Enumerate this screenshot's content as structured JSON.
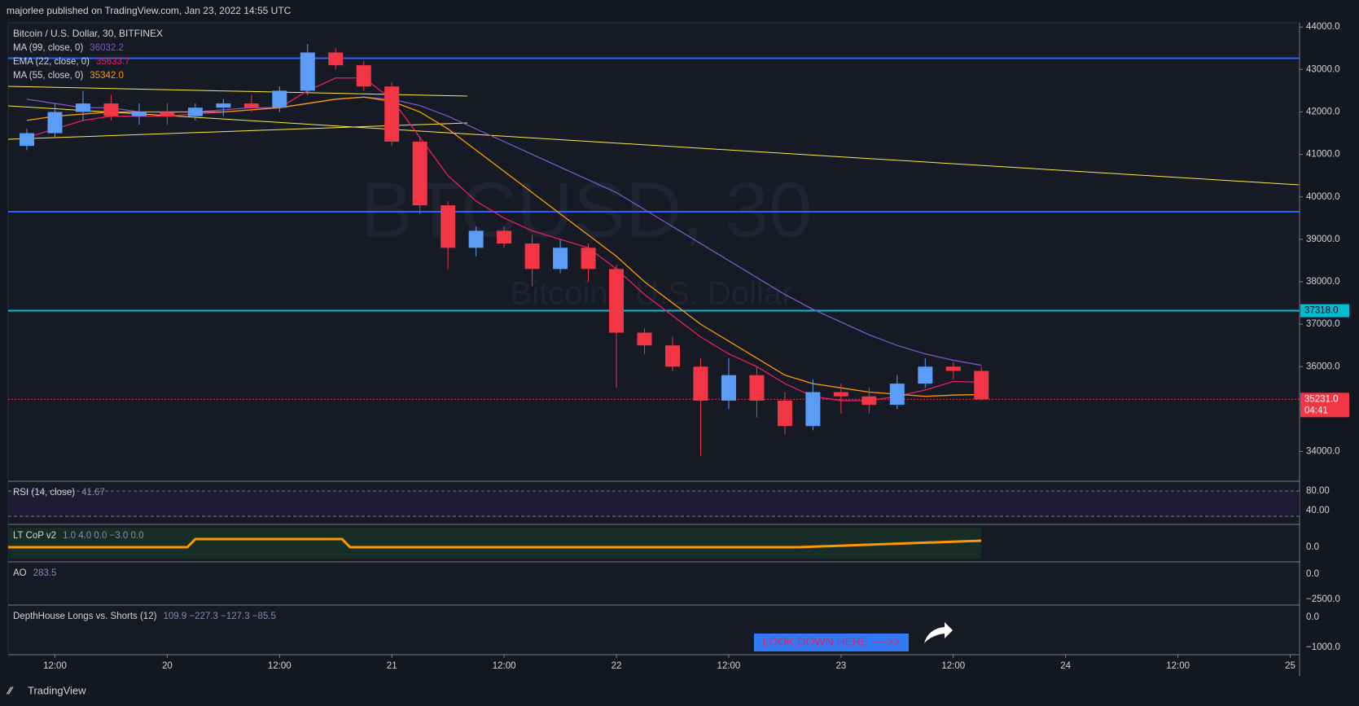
{
  "header": {
    "publisher": "majorlee published on TradingView.com, Jan 23, 2022 14:55 UTC"
  },
  "footer": {
    "brand": "TradingView"
  },
  "chart_data": {
    "type": "candlestick",
    "title": "Bitcoin / U.S. Dollar, 30, BITFINEX",
    "watermark": "BTCUSD, 30",
    "watermark_subtitle": "Bitcoin / U.S. Dollar",
    "annotation": "LOOK DOWN HERE ---->>",
    "x": [
      -15,
      -12,
      -9,
      -6,
      -3,
      0,
      3,
      6,
      9,
      12,
      15,
      18,
      21,
      24,
      27,
      30,
      33,
      36,
      39,
      42,
      45,
      48,
      51,
      54,
      57,
      60,
      63,
      66,
      69,
      72,
      75,
      78,
      81,
      84,
      87
    ],
    "open": [
      41200,
      41500,
      42000,
      42200,
      41900,
      42000,
      41900,
      42100,
      42200,
      42100,
      42500,
      43400,
      43100,
      42600,
      41300,
      39800,
      38800,
      39200,
      38900,
      38300,
      38800,
      38300,
      36800,
      36500,
      36000,
      35200,
      35800,
      35200,
      34600,
      35400,
      35300,
      35100,
      35600,
      36000,
      35900
    ],
    "high": [
      41600,
      42200,
      42500,
      42400,
      42200,
      42200,
      42200,
      42300,
      42400,
      42600,
      43600,
      43500,
      43200,
      42700,
      41400,
      39900,
      39300,
      39300,
      39100,
      39000,
      38900,
      38400,
      36900,
      36700,
      36200,
      36200,
      36000,
      35400,
      35700,
      35600,
      35500,
      35800,
      36200,
      36100,
      36000
    ],
    "low": [
      41100,
      41400,
      41800,
      41800,
      41700,
      41700,
      41800,
      41900,
      42000,
      42000,
      42400,
      43000,
      42500,
      41200,
      39600,
      38300,
      38600,
      38800,
      37900,
      38200,
      38000,
      35500,
      36300,
      35900,
      33900,
      35000,
      34800,
      34400,
      34500,
      34900,
      34900,
      35000,
      35500,
      35700,
      35200
    ],
    "close": [
      41500,
      42000,
      42200,
      41900,
      42000,
      41900,
      42100,
      42200,
      42100,
      42500,
      43400,
      43100,
      42600,
      41300,
      39800,
      38800,
      39200,
      38900,
      38300,
      38800,
      38300,
      36800,
      36500,
      36000,
      35200,
      35800,
      35200,
      34600,
      35400,
      35300,
      35100,
      35600,
      36000,
      35900,
      35231
    ],
    "up_color": "#5b9cf6",
    "down_color": "#f23645",
    "series": [
      {
        "name": "MA (99, close, 0)",
        "last": "36032.2",
        "color": "#7e57c2",
        "values": [
          42300,
          42200,
          42100,
          42100,
          42000,
          42000,
          42000,
          42050,
          42100,
          42100,
          42200,
          42300,
          42350,
          42300,
          42150,
          41900,
          41600,
          41300,
          41000,
          40700,
          40400,
          40100,
          39700,
          39300,
          38900,
          38500,
          38100,
          37700,
          37350,
          37050,
          36750,
          36500,
          36300,
          36150,
          36032.2
        ]
      },
      {
        "name": "EMA (22, close, 0)",
        "last": "35633.7",
        "color": "#e91e63",
        "values": [
          41400,
          41600,
          41800,
          41900,
          41900,
          41900,
          41950,
          42000,
          42050,
          42100,
          42500,
          42800,
          42800,
          42300,
          41400,
          40500,
          39900,
          39500,
          39200,
          39000,
          38800,
          38300,
          37700,
          37200,
          36700,
          36300,
          36000,
          35600,
          35300,
          35200,
          35200,
          35300,
          35450,
          35650,
          35633.7
        ]
      },
      {
        "name": "MA (55, close, 0)",
        "last": "35342.0",
        "color": "#ff9800",
        "values": [
          41800,
          41900,
          41950,
          42000,
          42000,
          42000,
          42000,
          42000,
          42050,
          42100,
          42200,
          42300,
          42350,
          42250,
          42000,
          41600,
          41100,
          40600,
          40100,
          39600,
          39100,
          38600,
          38000,
          37500,
          37000,
          36600,
          36200,
          35800,
          35600,
          35500,
          35400,
          35350,
          35300,
          35330,
          35342.0
        ]
      }
    ],
    "levels": [
      {
        "value": 43265,
        "color": "#2962ff"
      },
      {
        "value": 39650,
        "color": "#2962ff"
      },
      {
        "value": 37318,
        "label": "37318.0",
        "color": "#00bcd4"
      }
    ],
    "last_price": {
      "value": 35231,
      "label": "35231.0",
      "countdown": "04:41",
      "color": "#f23645"
    },
    "xlim": [
      -17,
      121
    ],
    "ylim": [
      33300,
      44100
    ],
    "yticks": [
      {
        "value": 34000,
        "label": "34000.0"
      },
      {
        "value": 35000,
        "label": "35000.0"
      },
      {
        "value": 36000,
        "label": "36000.0"
      },
      {
        "value": 37000,
        "label": "37000.0"
      },
      {
        "value": 38000,
        "label": "38000.0"
      },
      {
        "value": 39000,
        "label": "39000.0"
      },
      {
        "value": 40000,
        "label": "40000.0"
      },
      {
        "value": 41000,
        "label": "41000.0"
      },
      {
        "value": 42000,
        "label": "42000.0"
      },
      {
        "value": 43000,
        "label": "43000.0"
      },
      {
        "value": 44000,
        "label": "44000.0"
      }
    ],
    "xticks": [
      {
        "value": -12,
        "label": "12:00"
      },
      {
        "value": 0,
        "label": "20"
      },
      {
        "value": 12,
        "label": "12:00"
      },
      {
        "value": 24,
        "label": "21"
      },
      {
        "value": 36,
        "label": "12:00"
      },
      {
        "value": 48,
        "label": "22"
      },
      {
        "value": 60,
        "label": "12:00"
      },
      {
        "value": 72,
        "label": "23"
      },
      {
        "value": 84,
        "label": "12:00"
      },
      {
        "value": 96,
        "label": "24"
      },
      {
        "value": 108,
        "label": "12:00"
      },
      {
        "value": 120,
        "label": "25"
      }
    ],
    "panes": [
      {
        "name": "RSI (14, close)",
        "value": "41.67",
        "ticks": [
          "80.00",
          "40.00"
        ]
      },
      {
        "name": "LT CoP v2",
        "value": "1.0  4.0  0.0  −3.0  0.0",
        "ticks": [
          "0.0"
        ]
      },
      {
        "name": "AO",
        "value": "283.5",
        "ticks": [
          "0.0",
          "−2500.0"
        ]
      },
      {
        "name": "DepthHouse Longs vs. Shorts (12)",
        "value": "109.9  −227.3  −127.3  −85.5",
        "ticks": [
          "0.0",
          "−1000.0"
        ]
      }
    ]
  }
}
